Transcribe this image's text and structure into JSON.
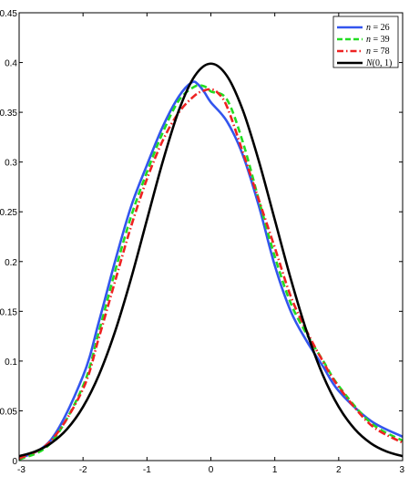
{
  "chart_data": {
    "type": "line",
    "title": "",
    "xlabel": "",
    "ylabel": "",
    "xlim": [
      -3,
      3
    ],
    "ylim": [
      0,
      0.45
    ],
    "grid": false,
    "legend_position": "top-right",
    "x_ticks": [
      -3,
      -2,
      -1,
      0,
      1,
      2,
      3
    ],
    "x_tick_labels": [
      "-3",
      "-2",
      "-1",
      "0",
      "1",
      "2",
      "3"
    ],
    "y_ticks": [
      0,
      0.05,
      0.1,
      0.15,
      0.2,
      0.25,
      0.3,
      0.35,
      0.4,
      0.45
    ],
    "y_tick_labels": [
      "0",
      "0.05",
      "0.1",
      "0.15",
      "0.2",
      "0.25",
      "0.3",
      "0.35",
      "0.4",
      "0.45"
    ],
    "series": [
      {
        "name": "n = 26",
        "color": "#3355ee",
        "dash": "solid",
        "x": [
          -3,
          -2.5,
          -2,
          -1.75,
          -1.5,
          -1.25,
          -1,
          -0.75,
          -0.5,
          -0.3,
          -0.2,
          -0.1,
          0,
          0.25,
          0.5,
          0.75,
          1,
          1.25,
          1.5,
          1.75,
          2,
          2.5,
          3
        ],
        "y": [
          0.002,
          0.021,
          0.085,
          0.14,
          0.2,
          0.255,
          0.297,
          0.336,
          0.366,
          0.38,
          0.378,
          0.37,
          0.36,
          0.341,
          0.307,
          0.256,
          0.196,
          0.15,
          0.12,
          0.095,
          0.07,
          0.04,
          0.024
        ]
      },
      {
        "name": "n = 39",
        "color": "#22dd22",
        "dash": "dashed",
        "x": [
          -3,
          -2.5,
          -2,
          -1.75,
          -1.5,
          -1.25,
          -1,
          -0.75,
          -0.5,
          -0.25,
          -0.1,
          0,
          0.25,
          0.5,
          0.75,
          1,
          1.25,
          1.5,
          1.75,
          2,
          2.5,
          3
        ],
        "y": [
          0.001,
          0.018,
          0.075,
          0.13,
          0.19,
          0.245,
          0.29,
          0.33,
          0.362,
          0.376,
          0.376,
          0.371,
          0.363,
          0.32,
          0.262,
          0.205,
          0.158,
          0.127,
          0.101,
          0.075,
          0.038,
          0.02
        ]
      },
      {
        "name": "n = 78",
        "color": "#ee2222",
        "dash": "dashdot",
        "x": [
          -3,
          -2.5,
          -2,
          -1.75,
          -1.5,
          -1.25,
          -1,
          -0.75,
          -0.5,
          -0.25,
          -0.1,
          0,
          0.1,
          0.25,
          0.5,
          0.75,
          1,
          1.25,
          1.5,
          1.75,
          2,
          2.5,
          3
        ],
        "y": [
          0.002,
          0.02,
          0.072,
          0.124,
          0.18,
          0.235,
          0.283,
          0.322,
          0.35,
          0.367,
          0.372,
          0.373,
          0.37,
          0.356,
          0.31,
          0.262,
          0.214,
          0.165,
          0.13,
          0.1,
          0.074,
          0.036,
          0.018
        ]
      },
      {
        "name": "N(0,1)",
        "color": "#000000",
        "dash": "solid",
        "x": [
          -3,
          -2.75,
          -2.5,
          -2.25,
          -2,
          -1.75,
          -1.5,
          -1.25,
          -1,
          -0.75,
          -0.5,
          -0.25,
          0,
          0.25,
          0.5,
          0.75,
          1,
          1.25,
          1.5,
          1.75,
          2,
          2.25,
          2.5,
          2.75,
          3
        ],
        "y": [
          0.0044,
          0.0091,
          0.0175,
          0.0317,
          0.054,
          0.0863,
          0.1295,
          0.1826,
          0.242,
          0.3011,
          0.3521,
          0.3867,
          0.3989,
          0.3867,
          0.3521,
          0.3011,
          0.242,
          0.1826,
          0.1295,
          0.0863,
          0.054,
          0.0317,
          0.0175,
          0.0091,
          0.0044
        ]
      }
    ]
  },
  "legend": [
    {
      "prefix": "n",
      "rest": " = 26"
    },
    {
      "prefix": "n",
      "rest": " = 39"
    },
    {
      "prefix": "n",
      "rest": " = 78"
    },
    {
      "prefix": "N",
      "rest": "(0, 1)"
    }
  ]
}
